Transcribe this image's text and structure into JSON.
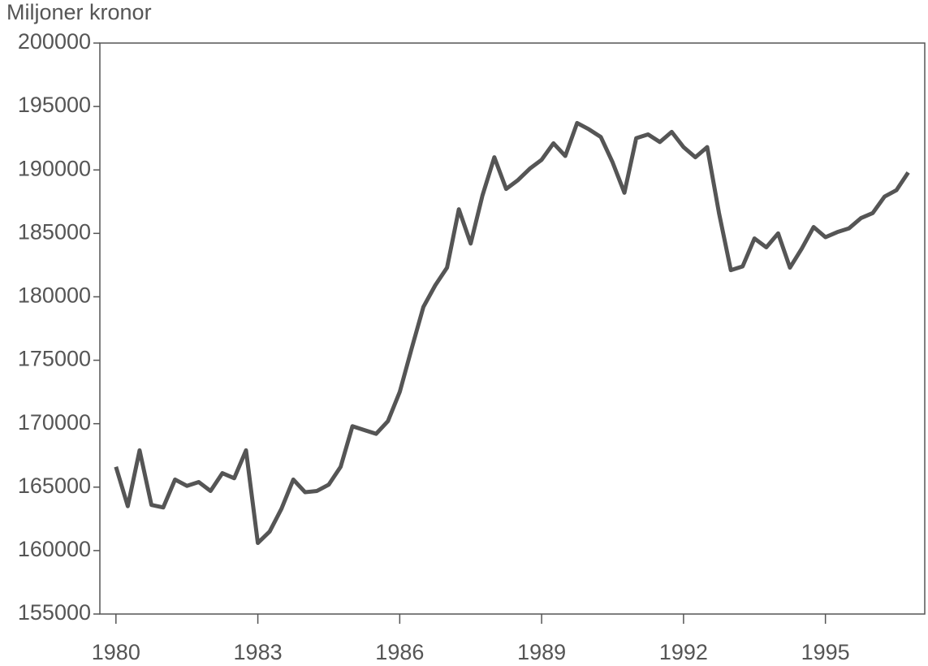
{
  "chart_data": {
    "type": "line",
    "title": "Miljoner kronor",
    "x": [
      1980,
      1980.25,
      1980.5,
      1980.75,
      1981,
      1981.25,
      1981.5,
      1981.75,
      1982,
      1982.25,
      1982.5,
      1982.75,
      1983,
      1983.25,
      1983.5,
      1983.75,
      1984,
      1984.25,
      1984.5,
      1984.75,
      1985,
      1985.25,
      1985.5,
      1985.75,
      1986,
      1986.25,
      1986.5,
      1986.75,
      1987,
      1987.25,
      1987.5,
      1987.75,
      1988,
      1988.25,
      1988.5,
      1988.75,
      1989,
      1989.25,
      1989.5,
      1989.75,
      1990,
      1990.25,
      1990.5,
      1990.75,
      1991,
      1991.25,
      1991.5,
      1991.75,
      1992,
      1992.25,
      1992.5,
      1992.75,
      1993,
      1993.25,
      1993.5,
      1993.75,
      1994,
      1994.25,
      1994.5,
      1994.75,
      1995,
      1995.25,
      1995.5,
      1995.75,
      1996,
      1996.25,
      1996.5,
      1996.75
    ],
    "series": [
      {
        "color": "#555555",
        "values": [
          166600,
          163500,
          167900,
          163600,
          163400,
          165600,
          165100,
          165400,
          164700,
          166100,
          165700,
          167900,
          160600,
          161500,
          163300,
          165600,
          164600,
          164700,
          165200,
          166600,
          169800,
          169500,
          169200,
          170200,
          172500,
          175900,
          179200,
          180900,
          182300,
          186900,
          184200,
          188000,
          191000,
          188500,
          189200,
          190100,
          190800,
          192100,
          191100,
          193700,
          193200,
          192600,
          190600,
          188200,
          192500,
          192800,
          192200,
          193000,
          191800,
          191000,
          191800,
          186600,
          182100,
          182400,
          184600,
          183900,
          185000,
          182300,
          183800,
          185500,
          184700,
          185100,
          185400,
          186200,
          186600,
          187900,
          188400,
          189800
        ]
      }
    ],
    "xlim": [
      1979.66,
      1997.1
    ],
    "xticks": [
      1980,
      1983,
      1986,
      1989,
      1992,
      1995
    ],
    "ylim": [
      155000,
      200000
    ],
    "yticks": [
      155000,
      160000,
      165000,
      170000,
      175000,
      180000,
      185000,
      190000,
      195000,
      200000
    ]
  }
}
